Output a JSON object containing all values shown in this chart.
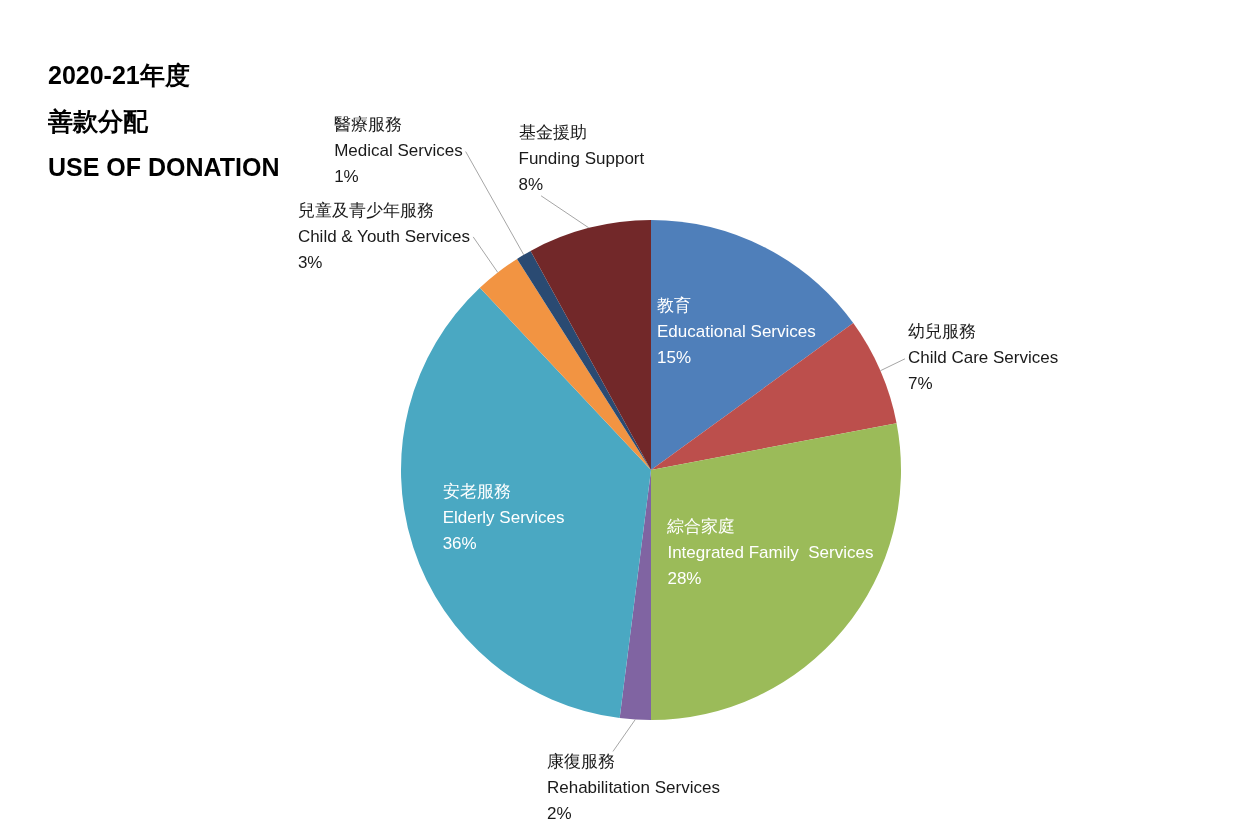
{
  "chart_data": {
    "type": "pie",
    "title": "2020-21年度",
    "subtitle": "善款分配\nUSE OF DONATION",
    "categories": [
      "教育\nEducational Services",
      "幼兒服務\nChild Care Services",
      "綜合家庭\nIntegrated Family  Services",
      "康復服務\nRehabilitation Services",
      "安老服務\nElderly Services",
      "兒童及青少年服務\nChild & Youth Services",
      "醫療服務\nMedical Services",
      "基金援助\nFunding Support"
    ],
    "values": [
      15,
      7,
      28,
      2,
      36,
      3,
      1,
      8
    ],
    "value_labels": [
      "15%",
      "7%",
      "28%",
      "2%",
      "36%",
      "3%",
      "1%",
      "8%"
    ],
    "colors": [
      "#4f7fba",
      "#bc4f4c",
      "#9bbb59",
      "#8064a2",
      "#4aa8c2",
      "#f29442",
      "#2a4a72",
      "#722829"
    ]
  }
}
